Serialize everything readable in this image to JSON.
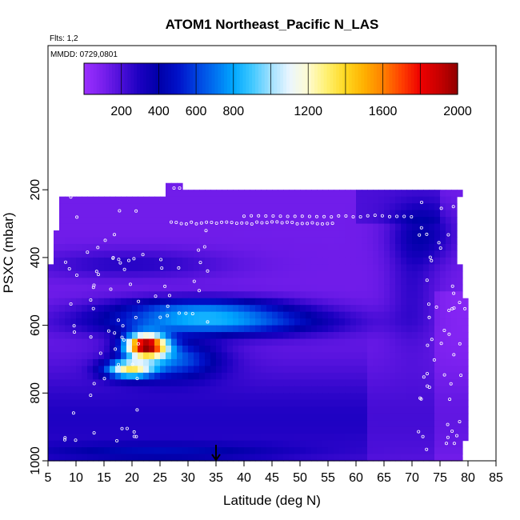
{
  "chart_data": {
    "type": "heatmap",
    "title": "ATOM1 Northeast_Pacific N_LAS",
    "flights_text": "Flts: 1,2",
    "dates_text": "MMDD: 0729,0801",
    "xlabel": "Latitude (deg N)",
    "ylabel": "PSXC (mbar)",
    "xlim": [
      5,
      85
    ],
    "ylim": [
      1000,
      100
    ],
    "x_ticks": [
      "5",
      "10",
      "15",
      "20",
      "25",
      "30",
      "35",
      "40",
      "45",
      "50",
      "55",
      "60",
      "65",
      "70",
      "75",
      "80",
      "85"
    ],
    "y_ticks": [
      "200",
      "400",
      "600",
      "800",
      "1000"
    ],
    "colorbar": {
      "range": [
        0,
        2000
      ],
      "tick_labels": [
        "200",
        "400",
        "600",
        "800",
        "1200",
        "1600",
        "2000"
      ],
      "tick_values": [
        200,
        400,
        600,
        800,
        1200,
        1600,
        2000
      ],
      "colors": [
        "#9b30ff",
        "#7a20ee",
        "#4b0fd8",
        "#1a00c0",
        "#0000a8",
        "#0010c8",
        "#0040e0",
        "#0070f0",
        "#00a8ff",
        "#40c8ff",
        "#a0e0ff",
        "#eaf6ff",
        "#fffbd0",
        "#fff070",
        "#ffd820",
        "#ffb000",
        "#ff8000",
        "#ff4000",
        "#ee0000",
        "#c80000",
        "#900000"
      ]
    },
    "marker": {
      "latitude": 35,
      "pressure": 1000
    },
    "grid": false
  }
}
